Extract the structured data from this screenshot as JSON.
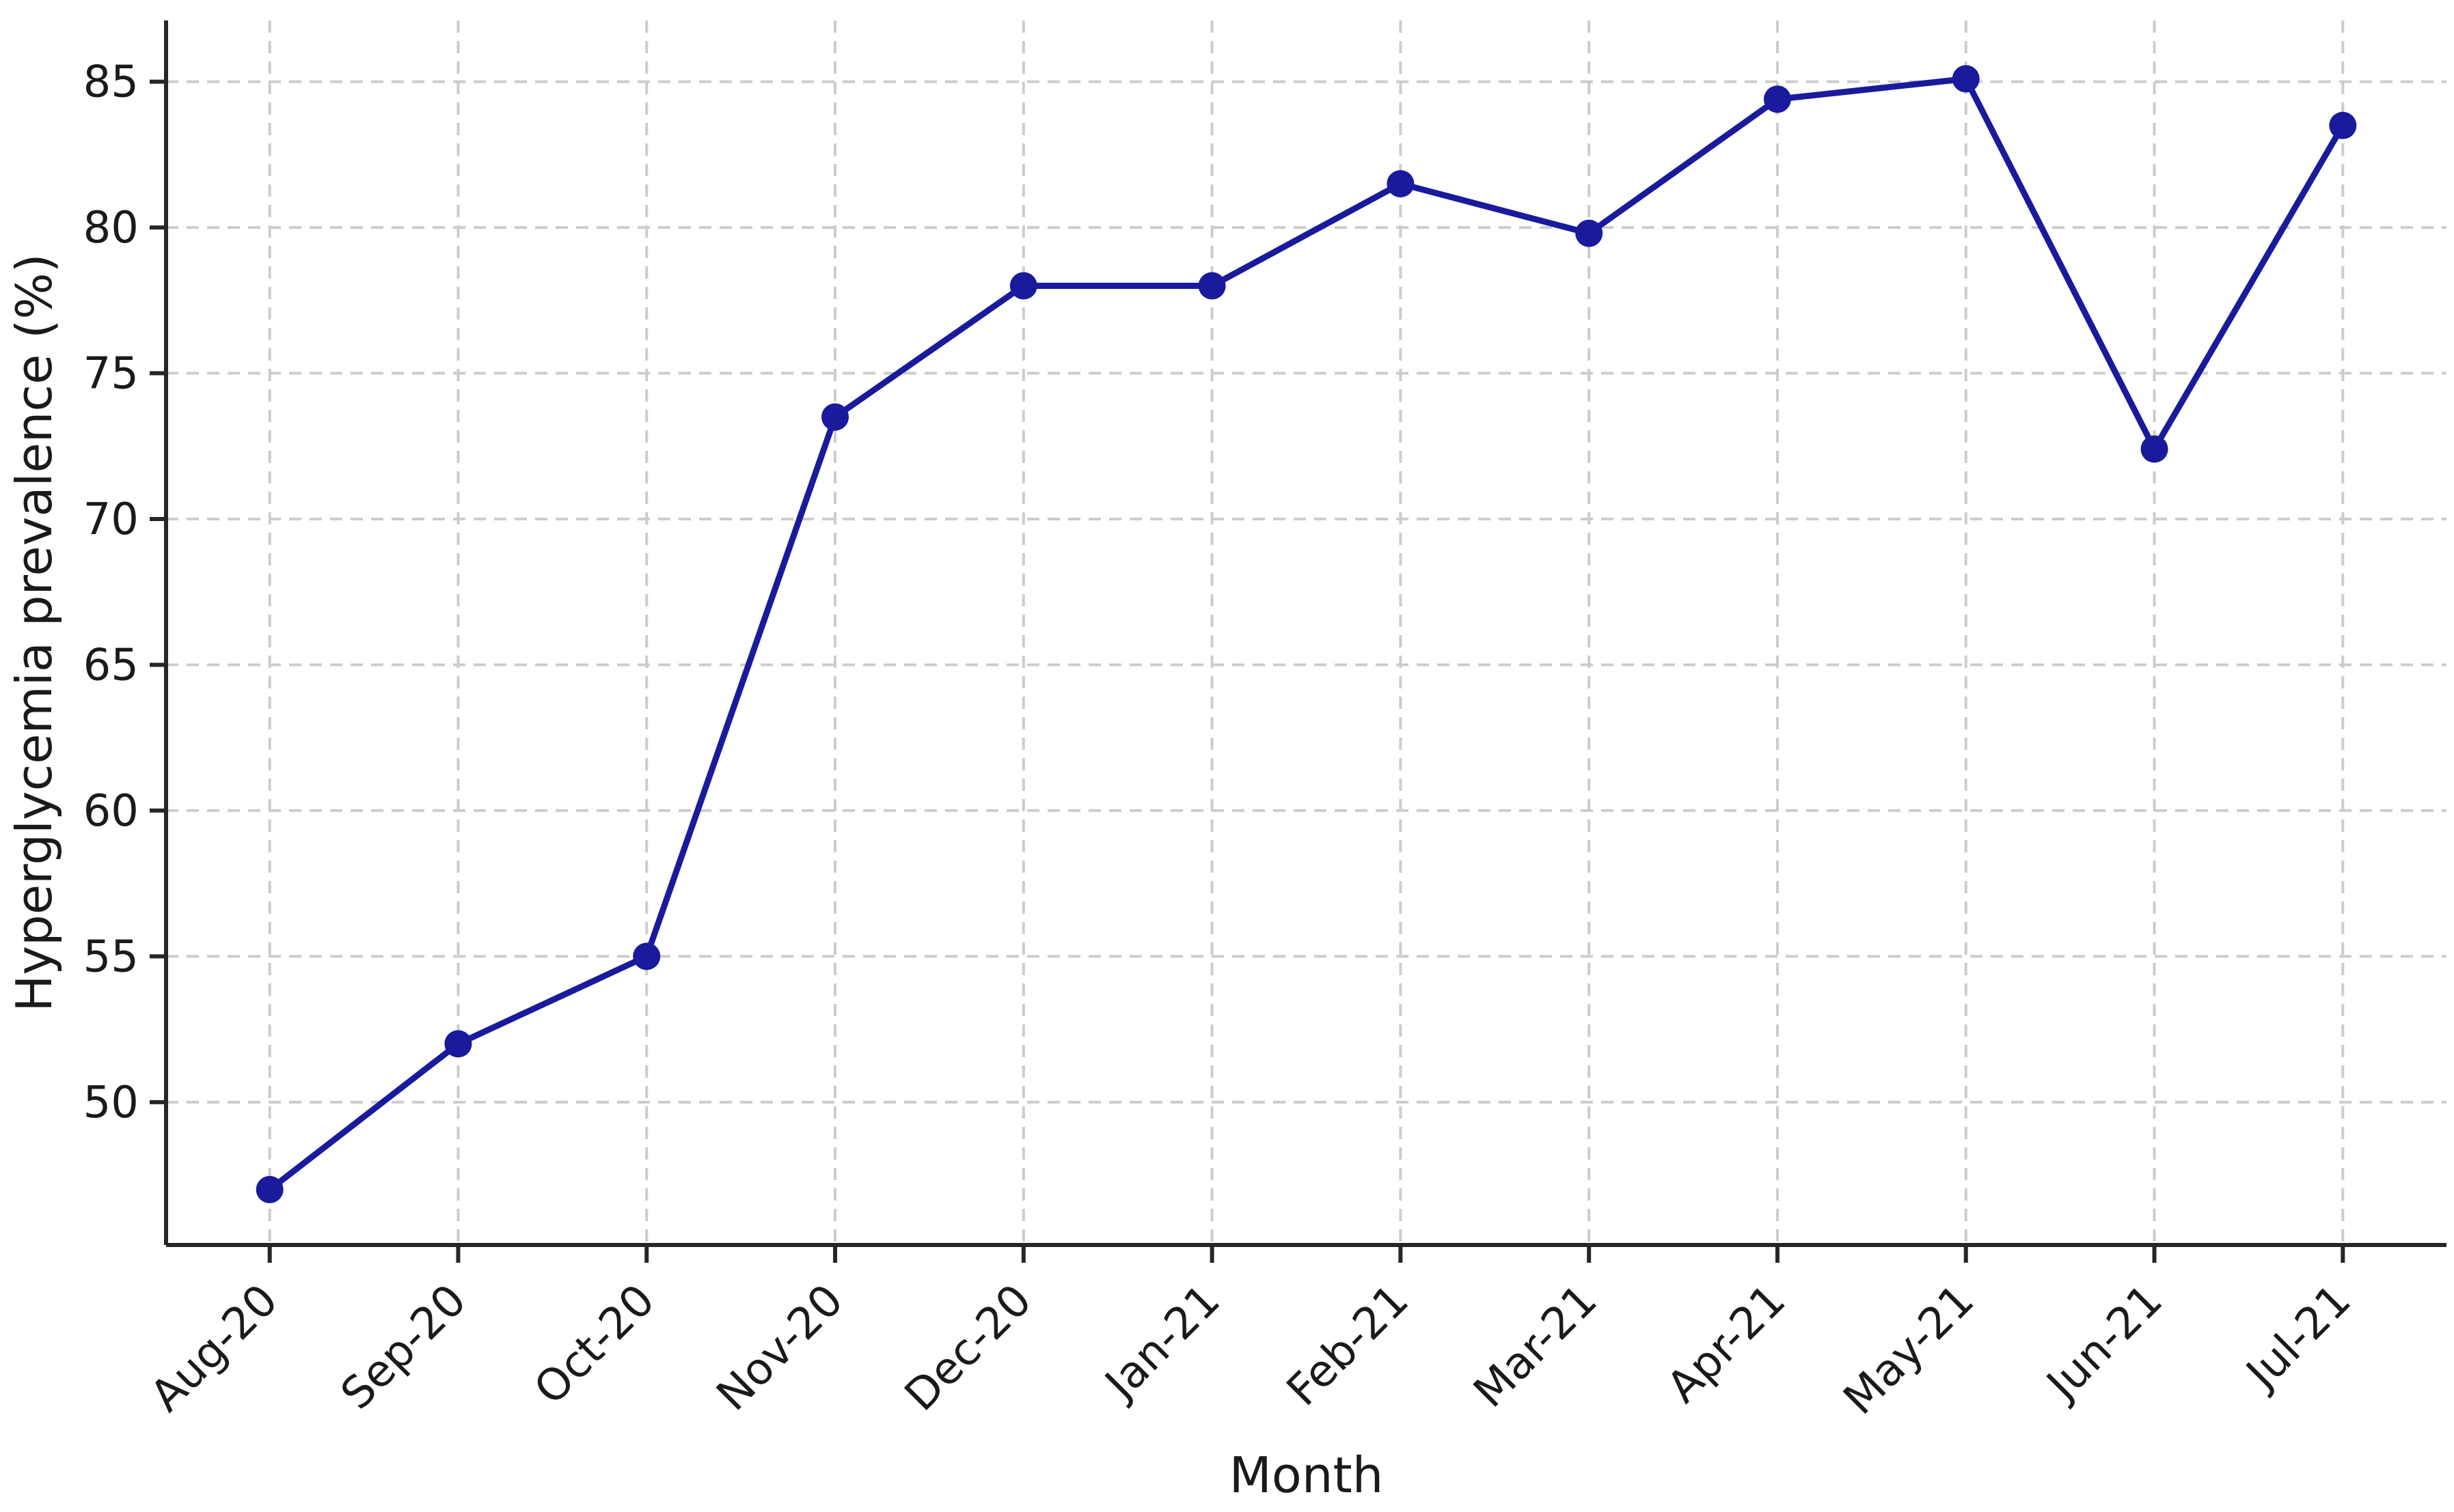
{
  "chart_data": {
    "type": "line",
    "title": "",
    "xlabel": "Month",
    "ylabel": "Hyperglycemia prevalence (%)",
    "categories": [
      "Aug-20",
      "Sep-20",
      "Oct-20",
      "Nov-20",
      "Dec-20",
      "Jan-21",
      "Feb-21",
      "Mar-21",
      "Apr-21",
      "May-21",
      "Jun-21",
      "Jul-21"
    ],
    "series": [
      {
        "name": "Hyperglycemia prevalence (%)",
        "values": [
          47.0,
          52.0,
          55.0,
          73.5,
          78.0,
          78.0,
          81.5,
          79.8,
          84.4,
          85.1,
          72.4,
          83.5
        ]
      }
    ],
    "yticks": [
      50,
      55,
      60,
      65,
      70,
      75,
      80,
      85
    ],
    "ylim": [
      45.1,
      87.1
    ],
    "x_margin_units": 0.55,
    "grid": true,
    "grid_style": "dashed",
    "legend_position": "none",
    "x_tick_rotation_deg": -45,
    "colors": {
      "line": "#1a1a9c",
      "marker": "#1a1a9c",
      "grid": "#cccccc",
      "spine": "#262626",
      "text": "#1a1a1a",
      "background": "#ffffff"
    }
  }
}
